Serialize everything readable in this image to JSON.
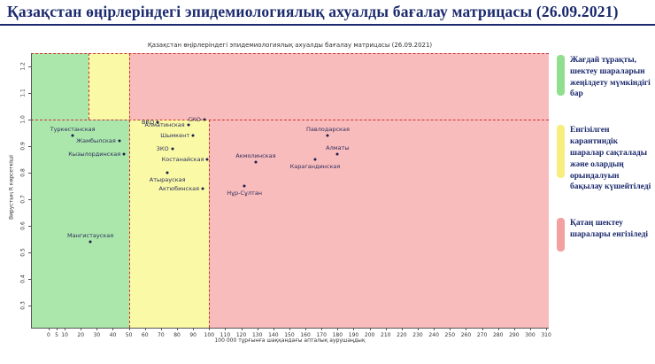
{
  "page": {
    "title": "Қазақстан өңірлеріндегі эпидемиологиялық ахуалды бағалау матрицасы  (26.09.2021)"
  },
  "legend": {
    "items": [
      {
        "color": "#8fdf8f",
        "text": "Жағдай тұрақты, шектеу шараларын жеңілдету мүмкіндігі бар"
      },
      {
        "color": "#f7ee7e",
        "text": "Енгізілген карантиндік шаралар сақталады және олардың орындалуын бақылау күшейтіледі"
      },
      {
        "color": "#f2a0a0",
        "text": "Қатаң шектеу шаралары енгізіледі"
      }
    ]
  },
  "colors": {
    "zone_green": "#abe7ab",
    "zone_yellow": "#f9f9a6",
    "zone_red": "#f9bcbc",
    "dashed_line": "#cc3333",
    "point": "#1c1c4e",
    "point_label": "#2e2e5e",
    "title": "#1b2a6e"
  },
  "chart_data": {
    "type": "scatter",
    "title": "Қазақстан өңірлеріндегі эпидемиологиялық ахуалды бағалау матрицасы  (26.09.2021)",
    "xlabel": "100 000 тұрғынға шаққандағы апталық аурушаңдық",
    "ylabel": "Вирустың R көрсеткіші",
    "xlim": [
      -11,
      311.6
    ],
    "ylim": [
      0.2167,
      1.25
    ],
    "x_ticks": [
      0,
      5,
      10,
      20,
      30,
      40,
      50,
      60,
      70,
      80,
      90,
      100,
      110,
      120,
      130,
      140,
      150,
      160,
      170,
      180,
      190,
      200,
      210,
      220,
      230,
      240,
      250,
      260,
      270,
      280,
      290,
      300,
      310
    ],
    "y_ticks": [
      0.3,
      0.4,
      0.5,
      0.6,
      0.7,
      0.8,
      0.9,
      1.0,
      1.1,
      1.2
    ],
    "grid": false,
    "legend_position": "right",
    "zones": [
      {
        "color_key": "zone_green",
        "x0": -11,
        "x1": 25,
        "r0": 1.0,
        "r1": 1.25
      },
      {
        "color_key": "zone_yellow",
        "x0": 25,
        "x1": 50,
        "r0": 1.0,
        "r1": 1.25
      },
      {
        "color_key": "zone_red",
        "x0": 50,
        "x1": 311.6,
        "r0": 1.0,
        "r1": 1.25
      },
      {
        "color_key": "zone_green",
        "x0": -11,
        "x1": 50,
        "r0": 0.2167,
        "r1": 1.0
      },
      {
        "color_key": "zone_yellow",
        "x0": 50,
        "x1": 100,
        "r0": 0.2167,
        "r1": 1.0
      },
      {
        "color_key": "zone_red",
        "x0": 100,
        "x1": 311.6,
        "r0": 0.2167,
        "r1": 1.0
      }
    ],
    "dashed_lines": [
      {
        "orient": "h",
        "at": 1.0,
        "x0": -11,
        "x1": 311.6
      },
      {
        "orient": "h",
        "at": 1.25,
        "x0": -11,
        "x1": 311.6
      },
      {
        "orient": "v",
        "at": 25,
        "r0": 1.0,
        "r1": 1.25
      },
      {
        "orient": "v",
        "at": 50,
        "r0": 0.2167,
        "r1": 1.25
      },
      {
        "orient": "v",
        "at": 100,
        "r0": 0.2167,
        "r1": 1.0
      }
    ],
    "points": [
      {
        "name": "Туркестанская",
        "x": 15,
        "r": 0.94,
        "label_pos": "above"
      },
      {
        "name": "Жамбылская",
        "x": 44,
        "r": 0.92,
        "label_pos": "left"
      },
      {
        "name": "Кызылординская",
        "x": 47,
        "r": 0.87,
        "label_pos": "left"
      },
      {
        "name": "Мангистауская",
        "x": 26,
        "r": 0.54,
        "label_pos": "above"
      },
      {
        "name": "ВКО",
        "x": 68,
        "r": 0.99,
        "label_pos": "left"
      },
      {
        "name": "СКО",
        "x": 97,
        "r": 1.0,
        "label_pos": "left"
      },
      {
        "name": "Алматинская",
        "x": 87,
        "r": 0.98,
        "label_pos": "left"
      },
      {
        "name": "Шымкент",
        "x": 90,
        "r": 0.94,
        "label_pos": "left"
      },
      {
        "name": "ЗКО",
        "x": 77,
        "r": 0.89,
        "label_pos": "left"
      },
      {
        "name": "Костанайская",
        "x": 99,
        "r": 0.85,
        "label_pos": "left"
      },
      {
        "name": "Атырауская",
        "x": 74,
        "r": 0.8,
        "label_pos": "below"
      },
      {
        "name": "Актюбинская",
        "x": 96,
        "r": 0.74,
        "label_pos": "left"
      },
      {
        "name": "Павлодарская",
        "x": 174,
        "r": 0.94,
        "label_pos": "above"
      },
      {
        "name": "Алматы",
        "x": 180,
        "r": 0.87,
        "label_pos": "above"
      },
      {
        "name": "Акмолинская",
        "x": 129,
        "r": 0.84,
        "label_pos": "above"
      },
      {
        "name": "Карагандинская",
        "x": 166,
        "r": 0.85,
        "label_pos": "below"
      },
      {
        "name": "Нұр-Сұлтан",
        "x": 122,
        "r": 0.75,
        "label_pos": "below"
      }
    ]
  }
}
